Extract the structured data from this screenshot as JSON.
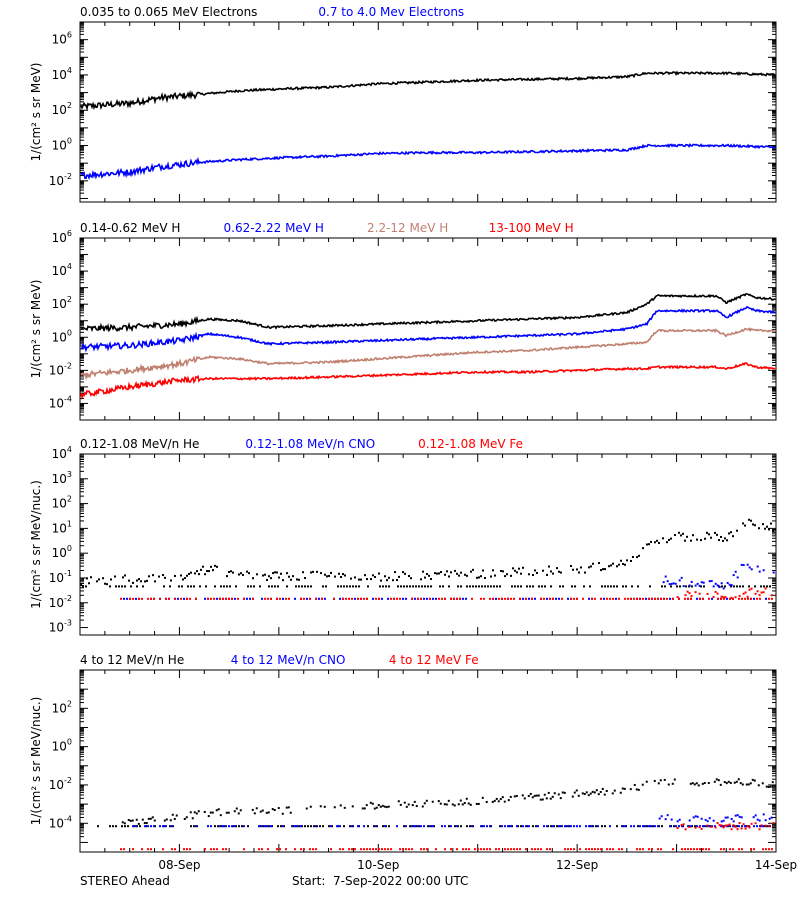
{
  "footer": {
    "left": "STEREO Ahead",
    "start": "Start:  7-Sep-2022 00:00 UTC"
  },
  "x_axis": {
    "range_days": [
      0,
      7
    ],
    "ticks": [
      {
        "day": 1,
        "label": "08-Sep"
      },
      {
        "day": 3,
        "label": "10-Sep"
      },
      {
        "day": 5,
        "label": "12-Sep"
      },
      {
        "day": 7,
        "label": "14-Sep"
      }
    ]
  },
  "chart_data": [
    {
      "type": "line",
      "panel": "electrons",
      "ylabel": "1/(cm² s sr MeV)",
      "y_scale": "log",
      "ylim_log10": [
        -3.2,
        7
      ],
      "y_ticks": [
        "10^-2",
        "10^0",
        "10^2",
        "10^4",
        "10^6"
      ],
      "legend": [
        {
          "label": "0.035 to 0.065 MeV Electrons",
          "color": "#000000"
        },
        {
          "label": "0.7 to 4.0 Mev Electrons",
          "color": "#0000ff"
        }
      ],
      "series": [
        {
          "name": "0.035 to 0.065 MeV Electrons",
          "color": "#000000",
          "x": [
            0,
            0.5,
            0.8,
            1.2,
            1.6,
            2.0,
            2.5,
            3.0,
            3.5,
            4.0,
            4.5,
            5.0,
            5.5,
            5.7,
            5.8,
            6.0,
            6.5,
            7.0
          ],
          "log10_y": [
            2.2,
            2.4,
            2.7,
            2.9,
            3.1,
            3.2,
            3.3,
            3.5,
            3.6,
            3.7,
            3.75,
            3.8,
            3.9,
            4.1,
            4.1,
            4.1,
            4.1,
            4.0
          ]
        },
        {
          "name": "0.7 to 4.0 Mev Electrons",
          "color": "#0000ff",
          "x": [
            0,
            0.5,
            0.8,
            1.2,
            1.6,
            2.0,
            2.5,
            3.0,
            3.5,
            4.0,
            4.5,
            5.0,
            5.5,
            5.7,
            5.8,
            6.0,
            6.5,
            7.0
          ],
          "log10_y": [
            -1.7,
            -1.5,
            -1.2,
            -0.95,
            -0.8,
            -0.7,
            -0.6,
            -0.45,
            -0.4,
            -0.4,
            -0.35,
            -0.3,
            -0.25,
            0.0,
            0.0,
            0.0,
            0.0,
            -0.1
          ]
        }
      ]
    },
    {
      "type": "line",
      "panel": "protons",
      "ylabel": "1/(cm² s sr MeV)",
      "y_scale": "log",
      "ylim_log10": [
        -5,
        6
      ],
      "y_ticks": [
        "10^-4",
        "10^-2",
        "10^0",
        "10^2",
        "10^4",
        "10^6"
      ],
      "legend": [
        {
          "label": "0.14-0.62 MeV H",
          "color": "#000000"
        },
        {
          "label": "0.62-2.22 MeV H",
          "color": "#0000ff"
        },
        {
          "label": "2.2-12 MeV H",
          "color": "#c08070"
        },
        {
          "label": "13-100 MeV H",
          "color": "#ff0000"
        }
      ],
      "series": [
        {
          "name": "0.14-0.62 MeV H",
          "color": "#000000",
          "x": [
            0,
            0.5,
            1.0,
            1.3,
            1.6,
            1.9,
            2.5,
            3.0,
            3.5,
            4.0,
            4.5,
            5.0,
            5.5,
            5.7,
            5.8,
            6.4,
            6.5,
            6.7,
            6.8,
            7.0
          ],
          "log10_y": [
            0.5,
            0.6,
            0.8,
            1.1,
            1.0,
            0.6,
            0.7,
            0.8,
            0.9,
            1.0,
            1.1,
            1.2,
            1.5,
            2.0,
            2.5,
            2.5,
            2.1,
            2.6,
            2.4,
            2.3
          ]
        },
        {
          "name": "0.62-2.22 MeV H",
          "color": "#0000ff",
          "x": [
            0,
            0.5,
            1.0,
            1.3,
            1.6,
            1.9,
            2.5,
            3.0,
            3.5,
            4.0,
            4.5,
            5.0,
            5.5,
            5.7,
            5.8,
            6.4,
            6.5,
            6.7,
            6.8,
            7.0
          ],
          "log10_y": [
            -0.6,
            -0.5,
            -0.2,
            0.2,
            0.0,
            -0.4,
            -0.3,
            -0.2,
            -0.1,
            0.0,
            0.1,
            0.2,
            0.5,
            0.8,
            1.6,
            1.6,
            1.2,
            1.8,
            1.6,
            1.5
          ]
        },
        {
          "name": "2.2-12 MeV H",
          "color": "#c08070",
          "x": [
            0,
            0.5,
            1.0,
            1.3,
            1.6,
            1.9,
            2.5,
            3.0,
            3.5,
            4.0,
            4.5,
            5.0,
            5.5,
            5.7,
            5.8,
            6.4,
            6.5,
            6.7,
            6.8,
            7.0
          ],
          "log10_y": [
            -2.3,
            -2.0,
            -1.6,
            -1.2,
            -1.3,
            -1.6,
            -1.5,
            -1.3,
            -1.1,
            -0.9,
            -0.8,
            -0.6,
            -0.4,
            -0.3,
            0.4,
            0.4,
            0.1,
            0.5,
            0.4,
            0.4
          ]
        },
        {
          "name": "13-100 MeV H",
          "color": "#ff0000",
          "x": [
            0,
            0.5,
            1.0,
            1.3,
            1.6,
            1.9,
            2.5,
            3.0,
            3.5,
            4.0,
            4.5,
            5.0,
            5.5,
            5.7,
            5.8,
            6.4,
            6.5,
            6.7,
            6.8,
            7.0
          ],
          "log10_y": [
            -3.5,
            -3.0,
            -2.6,
            -2.5,
            -2.5,
            -2.5,
            -2.4,
            -2.3,
            -2.2,
            -2.1,
            -2.1,
            -2.0,
            -1.9,
            -1.9,
            -1.8,
            -1.8,
            -1.9,
            -1.6,
            -1.8,
            -1.9
          ]
        }
      ]
    },
    {
      "type": "scatter",
      "panel": "low-energy-heavy-ions",
      "ylabel": "1/(cm² s sr MeV/nuc.)",
      "y_scale": "log",
      "ylim_log10": [
        -3.3,
        4
      ],
      "y_ticks": [
        "10^-3",
        "10^-2",
        "10^-1",
        "10^0",
        "10^1",
        "10^2",
        "10^3",
        "10^4"
      ],
      "legend": [
        {
          "label": "0.12-1.08 MeV/n He",
          "color": "#000000"
        },
        {
          "label": "0.12-1.08 MeV/n CNO",
          "color": "#0000ff"
        },
        {
          "label": "0.12-1.08 MeV Fe",
          "color": "#ff0000"
        }
      ],
      "series": [
        {
          "name": "0.12-1.08 MeV/n He",
          "color": "#000000",
          "x": [
            0,
            0.5,
            1.0,
            1.3,
            1.6,
            2.0,
            2.5,
            3.0,
            3.5,
            4.0,
            4.5,
            5.0,
            5.5,
            5.8,
            6.0,
            6.5,
            6.7,
            6.8,
            7.0
          ],
          "log10_y": [
            -1.1,
            -1.0,
            -0.9,
            -0.6,
            -0.8,
            -0.9,
            -0.85,
            -0.9,
            -0.85,
            -0.8,
            -0.7,
            -0.6,
            -0.4,
            0.6,
            0.7,
            0.7,
            1.4,
            1.2,
            1.0
          ],
          "baseline_log10": -1.3
        },
        {
          "name": "0.12-1.08 MeV/n CNO",
          "color": "#0000ff",
          "x": [
            5.8,
            6.0,
            6.5,
            6.7,
            6.8,
            7.0
          ],
          "log10_y": [
            -1.0,
            -1.1,
            -1.3,
            -0.3,
            -0.6,
            -0.7
          ],
          "baseline_log10": -1.8
        },
        {
          "name": "0.12-1.08 MeV Fe",
          "color": "#ff0000",
          "x": [
            6.0,
            6.5,
            7.0
          ],
          "log10_y": [
            -1.6,
            -1.6,
            -1.5
          ],
          "baseline_log10": -1.8
        }
      ]
    },
    {
      "type": "scatter",
      "panel": "high-energy-heavy-ions",
      "ylabel": "1/(cm² s sr MeV/nuc.)",
      "y_scale": "log",
      "ylim_log10": [
        -5.5,
        4
      ],
      "y_ticks": [
        "10^-4",
        "10^-2",
        "10^0",
        "10^2"
      ],
      "legend": [
        {
          "label": "4 to 12 MeV/n He",
          "color": "#000000"
        },
        {
          "label": "4 to 12 MeV/n CNO",
          "color": "#0000ff"
        },
        {
          "label": "4 to 12 MeV Fe",
          "color": "#ff0000"
        }
      ],
      "series": [
        {
          "name": "4 to 12 MeV/n He",
          "color": "#000000",
          "x": [
            0.4,
            1.0,
            1.5,
            2.0,
            2.5,
            3.0,
            3.5,
            4.0,
            4.5,
            5.0,
            5.5,
            5.8,
            6.0,
            6.5,
            7.0
          ],
          "log10_y": [
            -4.0,
            -3.6,
            -3.3,
            -3.3,
            -3.2,
            -3.0,
            -2.9,
            -2.8,
            -2.6,
            -2.4,
            -2.2,
            -1.8,
            -1.8,
            -1.8,
            -1.9
          ],
          "baseline_log10": -4.1
        },
        {
          "name": "4 to 12 MeV/n CNO",
          "color": "#0000ff",
          "x": [
            5.8,
            6.0,
            6.5,
            7.0
          ],
          "log10_y": [
            -3.6,
            -3.7,
            -3.7,
            -3.6
          ],
          "baseline_log10": -4.1
        },
        {
          "name": "4 to 12 MeV Fe",
          "color": "#ff0000",
          "x": [
            6.0,
            7.0
          ],
          "log10_y": [
            -4.1,
            -4.1
          ],
          "baseline_log10": -5.3
        }
      ]
    }
  ]
}
